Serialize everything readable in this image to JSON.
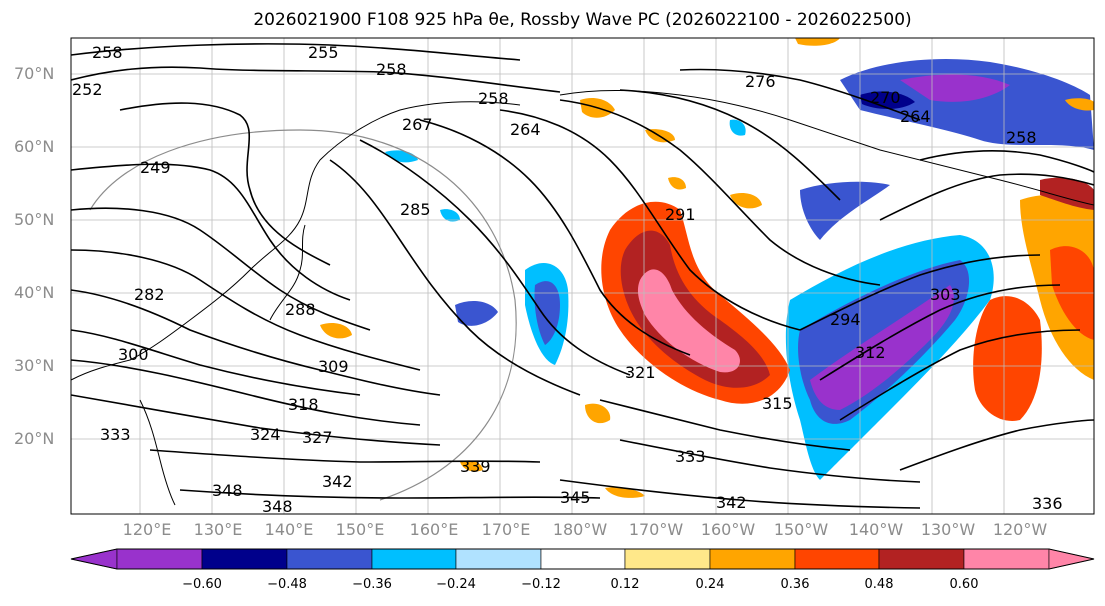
{
  "title": "2026021900 F108 925 hPa θe, Rossby Wave PC (2026022100 - 2026022500)",
  "map": {
    "lat_labels": [
      "70°N",
      "60°N",
      "50°N",
      "40°N",
      "30°N",
      "20°N"
    ],
    "lon_labels": [
      "120°E",
      "130°E",
      "140°E",
      "150°E",
      "160°E",
      "170°E",
      "180°W",
      "170°W",
      "160°W",
      "150°W",
      "140°W",
      "130°W",
      "120°W"
    ],
    "contour_labels": [
      "258",
      "255",
      "258",
      "252",
      "258",
      "267",
      "264",
      "276",
      "270",
      "264",
      "258",
      "249",
      "285",
      "291",
      "282",
      "288",
      "300",
      "309",
      "318",
      "324",
      "327",
      "339",
      "342",
      "348",
      "348",
      "345",
      "342",
      "333",
      "336",
      "321",
      "315",
      "294",
      "303",
      "312",
      "333"
    ]
  },
  "colorbar": {
    "ticks": [
      "−0.60",
      "−0.48",
      "−0.36",
      "−0.24",
      "−0.12",
      "0.12",
      "0.24",
      "0.36",
      "0.48",
      "0.60"
    ],
    "colors": [
      "#9932cc",
      "#00008b",
      "#3a55d0",
      "#00bfff",
      "#b0e2ff",
      "#ffffff",
      "#ffe88a",
      "#ffa500",
      "#ff4500",
      "#b22222",
      "#ff85a8",
      "#ff85a8"
    ]
  }
}
